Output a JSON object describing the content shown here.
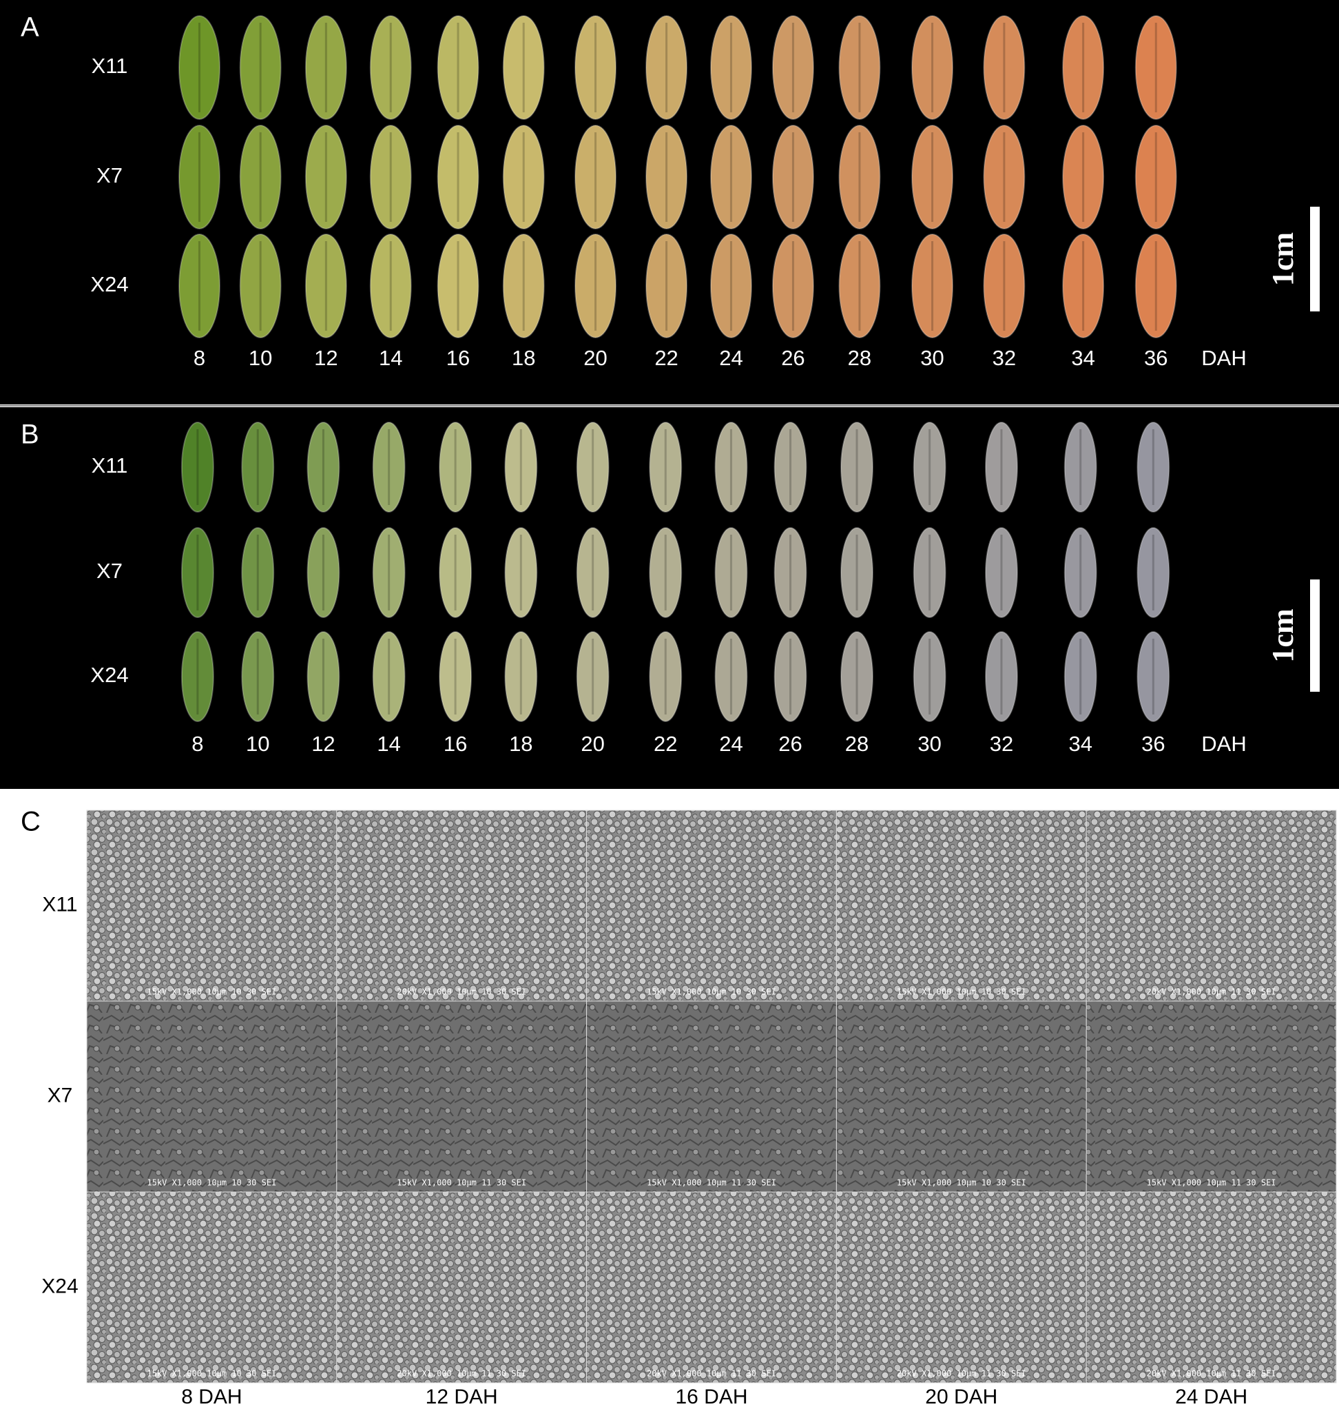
{
  "panel_a": {
    "label": "A",
    "rows": [
      "X11",
      "X7",
      "X24"
    ],
    "columns": [
      8,
      10,
      12,
      14,
      16,
      18,
      20,
      22,
      24,
      26,
      28,
      30,
      32,
      34,
      36
    ],
    "unit": "DAH",
    "scale_bar": "1cm"
  },
  "panel_b": {
    "label": "B",
    "rows": [
      "X11",
      "X7",
      "X24"
    ],
    "columns": [
      8,
      10,
      12,
      14,
      16,
      18,
      20,
      22,
      24,
      26,
      28,
      30,
      32,
      34,
      36
    ],
    "unit": "DAH",
    "scale_bar": "1cm"
  },
  "panel_c": {
    "label": "C",
    "rows": [
      "X11",
      "X7",
      "X24"
    ],
    "columns": [
      "8 DAH",
      "12 DAH",
      "16 DAH",
      "20 DAH",
      "24 DAH"
    ],
    "captions": [
      [
        "15kV X1,000 10µm 10 30 SEI",
        "20kV X1,000 10µm 10 30 SEI",
        "15kV X1,000 10µm 10 30 SEI",
        "15kV X1,000 10µm 10 30 SEI",
        "20kV X1,000 10µm 11 30 SEI"
      ],
      [
        "15kV X1,000 10µm 10 30 SEI",
        "15kV X1,000 10µm 11 30 SEI",
        "15kV X1,000 10µm 11 30 SEI",
        "15kV X1,000 10µm 10 30 SEI",
        "15kV X1,000 10µm 11 30 SEI"
      ],
      [
        "15kV X1,000 10µm 10 30 SEI",
        "20kV X1,000 10µm 11 30 SEI",
        "20kV X1,000 10µm 11 30 SEI",
        "20kV X1,000 10µm 11 30 SEI",
        "20kV X1,000 10µm 11 30 SEI"
      ]
    ]
  }
}
